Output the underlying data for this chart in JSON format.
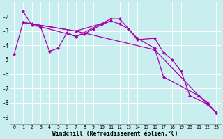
{
  "title": "",
  "xlabel": "Windchill (Refroidissement éolien,°C)",
  "ylabel": "",
  "background_color": "#c8eef0",
  "grid_color": "#aadddd",
  "line_color": "#aa00aa",
  "marker": "D",
  "marker_size": 2.5,
  "xlim": [
    -0.5,
    23.5
  ],
  "ylim": [
    -9.5,
    -1.0
  ],
  "yticks": [
    -9,
    -8,
    -7,
    -6,
    -5,
    -4,
    -3,
    -2
  ],
  "xticks": [
    0,
    1,
    2,
    3,
    4,
    5,
    6,
    7,
    8,
    9,
    10,
    11,
    12,
    13,
    14,
    15,
    16,
    17,
    18,
    19,
    20,
    21,
    22,
    23
  ],
  "series": [
    {
      "x": [
        1,
        2,
        3,
        4,
        5,
        6,
        7,
        11,
        12,
        14,
        16,
        17,
        21,
        22,
        23
      ],
      "y": [
        -1.6,
        -2.6,
        -2.7,
        -4.4,
        -4.2,
        -3.1,
        -3.4,
        -2.15,
        -2.15,
        -3.5,
        -4.2,
        -6.2,
        -7.5,
        -8.0,
        -8.7
      ]
    },
    {
      "x": [
        1,
        2,
        3,
        7,
        8,
        9,
        10,
        11
      ],
      "y": [
        -2.4,
        -2.5,
        -2.7,
        -3.35,
        -3.2,
        -2.85,
        -2.55,
        -2.3
      ]
    },
    {
      "x": [
        1,
        7,
        11,
        12,
        13,
        14,
        16,
        17,
        18,
        19,
        20,
        22,
        23
      ],
      "y": [
        -2.4,
        -3.0,
        -2.3,
        -2.5,
        -2.85,
        -3.6,
        -3.5,
        -4.5,
        -5.0,
        -5.8,
        -7.5,
        -8.1,
        -8.7
      ]
    },
    {
      "x": [
        0,
        1,
        7,
        16,
        21,
        23
      ],
      "y": [
        -4.6,
        -2.4,
        -3.0,
        -4.3,
        -7.5,
        -8.7
      ]
    }
  ]
}
